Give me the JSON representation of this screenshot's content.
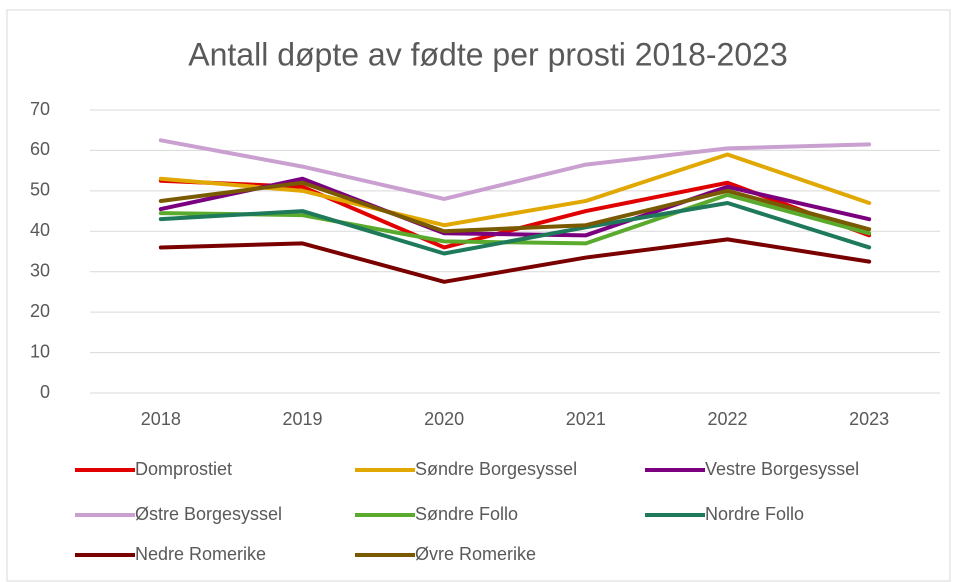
{
  "chart_data": {
    "type": "line",
    "title": "Antall døpte av fødte per prosti 2018-2023",
    "categories": [
      "2018",
      "2019",
      "2020",
      "2021",
      "2022",
      "2023"
    ],
    "ylim": [
      0,
      70
    ],
    "yticks": [
      0,
      10,
      20,
      30,
      40,
      50,
      60,
      70
    ],
    "grid": true,
    "legend": "bottom",
    "series": [
      {
        "name": "Domprostiet",
        "color": "#e00000",
        "values": [
          52.5,
          51,
          36,
          45,
          52,
          39
        ]
      },
      {
        "name": "Søndre Borgesyssel",
        "color": "#e0a800",
        "values": [
          53,
          50,
          41.5,
          47.5,
          59,
          47
        ]
      },
      {
        "name": "Vestre Borgesyssel",
        "color": "#7b0080",
        "values": [
          45.5,
          53,
          39.5,
          39,
          51,
          43
        ]
      },
      {
        "name": "Østre Borgesyssel",
        "color": "#c9a0d0",
        "values": [
          62.5,
          56,
          48,
          56.5,
          60.5,
          61.5
        ]
      },
      {
        "name": "Søndre Follo",
        "color": "#5aaa2e",
        "values": [
          44.5,
          44,
          37.5,
          37,
          49,
          39.5
        ]
      },
      {
        "name": "Nordre Follo",
        "color": "#1e7a5a",
        "values": [
          43,
          45,
          34.5,
          41,
          47,
          36
        ]
      },
      {
        "name": "Nedre Romerike",
        "color": "#7a0000",
        "values": [
          36,
          37,
          27.5,
          33.5,
          38,
          32.5
        ]
      },
      {
        "name": "Øvre Romerike",
        "color": "#7a5a00",
        "values": [
          47.5,
          52,
          40,
          41.5,
          50,
          40.5
        ]
      }
    ]
  }
}
